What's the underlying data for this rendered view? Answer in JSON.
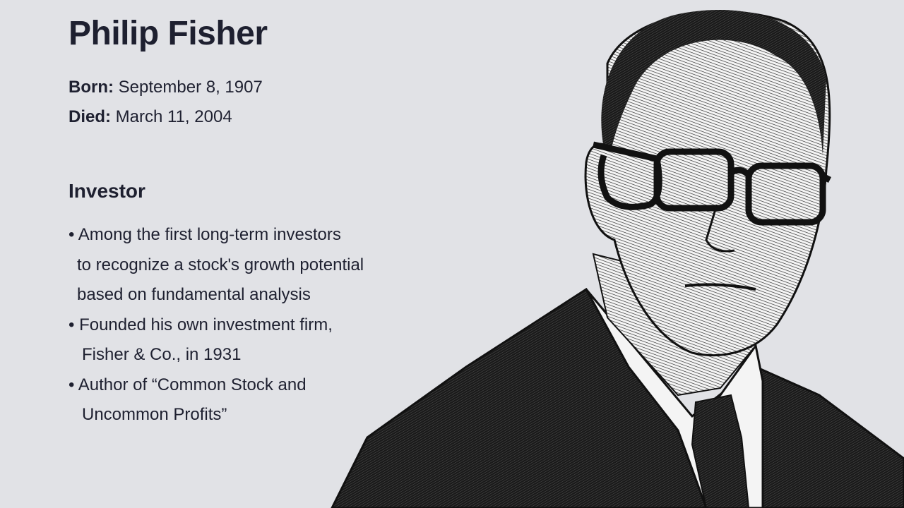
{
  "title": "Philip Fisher",
  "born": {
    "label": "Born:",
    "value": "September 8, 1907"
  },
  "died": {
    "label": "Died:",
    "value": "March 11, 2004"
  },
  "subtitle": "Investor",
  "bullets": [
    {
      "lines": [
        "• Among the first long-term investors",
        "to recognize a stock's growth potential",
        "based on fundamental analysis"
      ]
    },
    {
      "lines": [
        "• Founded his own investment firm,",
        "Fisher & Co., in 1931"
      ]
    },
    {
      "lines": [
        "• Author of “Common Stock and",
        "Uncommon Profits”"
      ]
    }
  ],
  "colors": {
    "background": "#e1e2e6",
    "text": "#1e2030"
  },
  "illustration": "hatched-ink-portrait"
}
